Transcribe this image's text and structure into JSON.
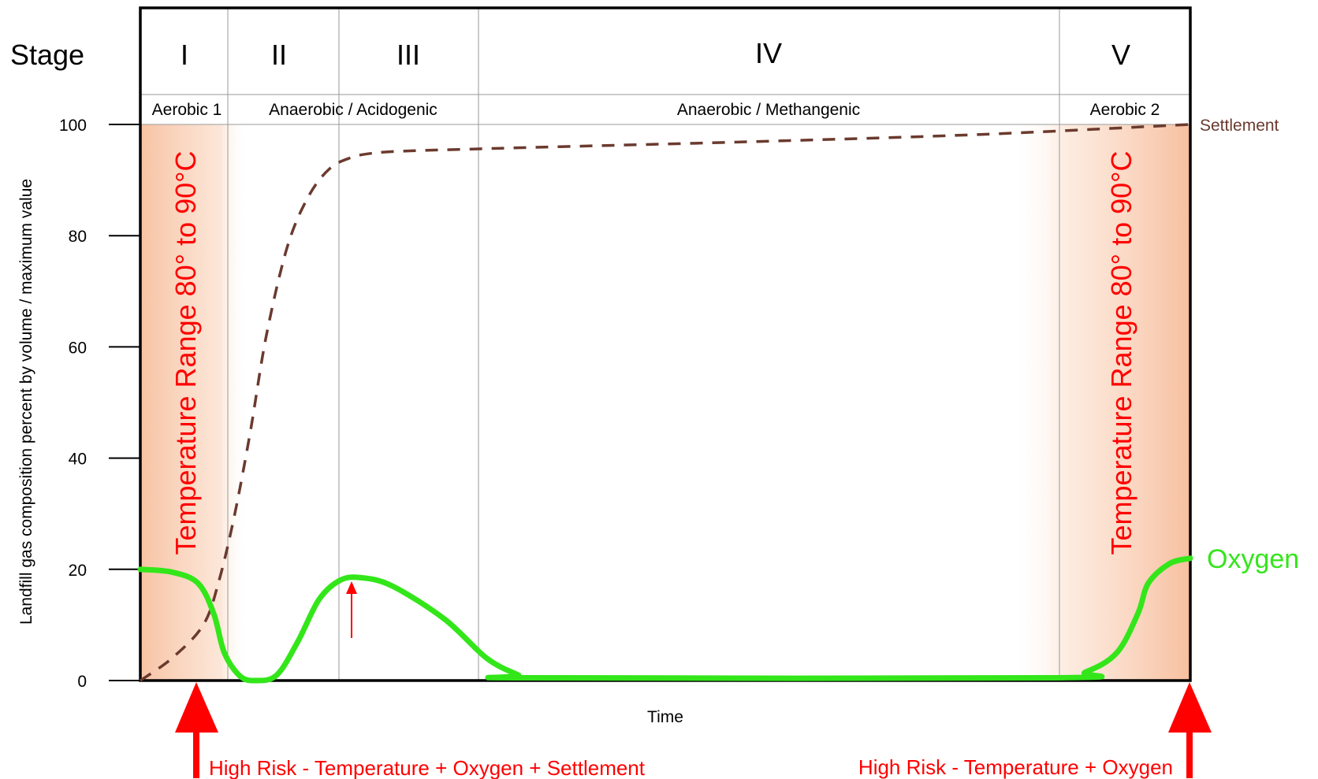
{
  "chart_data": {
    "type": "line",
    "xlabel": "Time",
    "ylabel": "Landfill gas composition percent by volume / maximum value",
    "ylim": [
      0,
      100
    ],
    "yticks": [
      "0",
      "20",
      "40",
      "60",
      "80",
      "100"
    ],
    "stage_header_label": "Stage",
    "stages": [
      {
        "numeral": "I",
        "phase": "Aerobic 1"
      },
      {
        "numeral": "II",
        "phase": "Anaerobic / Acidogenic"
      },
      {
        "numeral": "III",
        "phase": ""
      },
      {
        "numeral": "IV",
        "phase": "Anaerobic / Methangenic"
      },
      {
        "numeral": "V",
        "phase": "Aerobic 2"
      }
    ],
    "series": [
      {
        "name": "Settlement",
        "style": "dashed",
        "color": "#6b3a2e",
        "points": [
          [
            0,
            0
          ],
          [
            3,
            4
          ],
          [
            6,
            10
          ],
          [
            7.5,
            18
          ],
          [
            9,
            30
          ],
          [
            10.5,
            45
          ],
          [
            12,
            62
          ],
          [
            14,
            78
          ],
          [
            16,
            87
          ],
          [
            18,
            92
          ],
          [
            20,
            94
          ],
          [
            22,
            94.8
          ],
          [
            25,
            95.2
          ],
          [
            32,
            95.6
          ],
          [
            40,
            96
          ],
          [
            60,
            97
          ],
          [
            80,
            98.2
          ],
          [
            100,
            100
          ]
        ]
      },
      {
        "name": "Oxygen",
        "style": "solid",
        "color": "#33e61a",
        "points": [
          [
            0,
            20
          ],
          [
            3,
            19.5
          ],
          [
            5.5,
            17.5
          ],
          [
            7,
            12
          ],
          [
            8,
            5
          ],
          [
            9.5,
            0.8
          ],
          [
            11,
            0
          ],
          [
            13,
            1
          ],
          [
            15,
            7
          ],
          [
            17,
            14.5
          ],
          [
            19,
            18
          ],
          [
            21,
            18.5
          ],
          [
            24,
            17
          ],
          [
            29,
            11
          ],
          [
            33,
            4
          ],
          [
            36,
            1
          ],
          [
            37,
            0.5
          ],
          [
            87,
            0.5
          ],
          [
            90,
            1.5
          ],
          [
            93,
            5
          ],
          [
            95,
            12
          ],
          [
            96,
            17.5
          ],
          [
            98,
            21
          ],
          [
            100,
            22
          ]
        ]
      }
    ],
    "annotations": {
      "temperature_left": "Temperature Range 80° to 90°C",
      "temperature_right": "Temperature Range 80° to 90°C",
      "risk_left": "High Risk - Temperature + Oxygen + Settlement",
      "risk_right": "High Risk - Temperature + Oxygen"
    }
  },
  "colors": {
    "settlement": "#6b3a2e",
    "oxygen": "#33e61a",
    "risk": "#ff0000",
    "heat_shade": "#f6b894"
  }
}
